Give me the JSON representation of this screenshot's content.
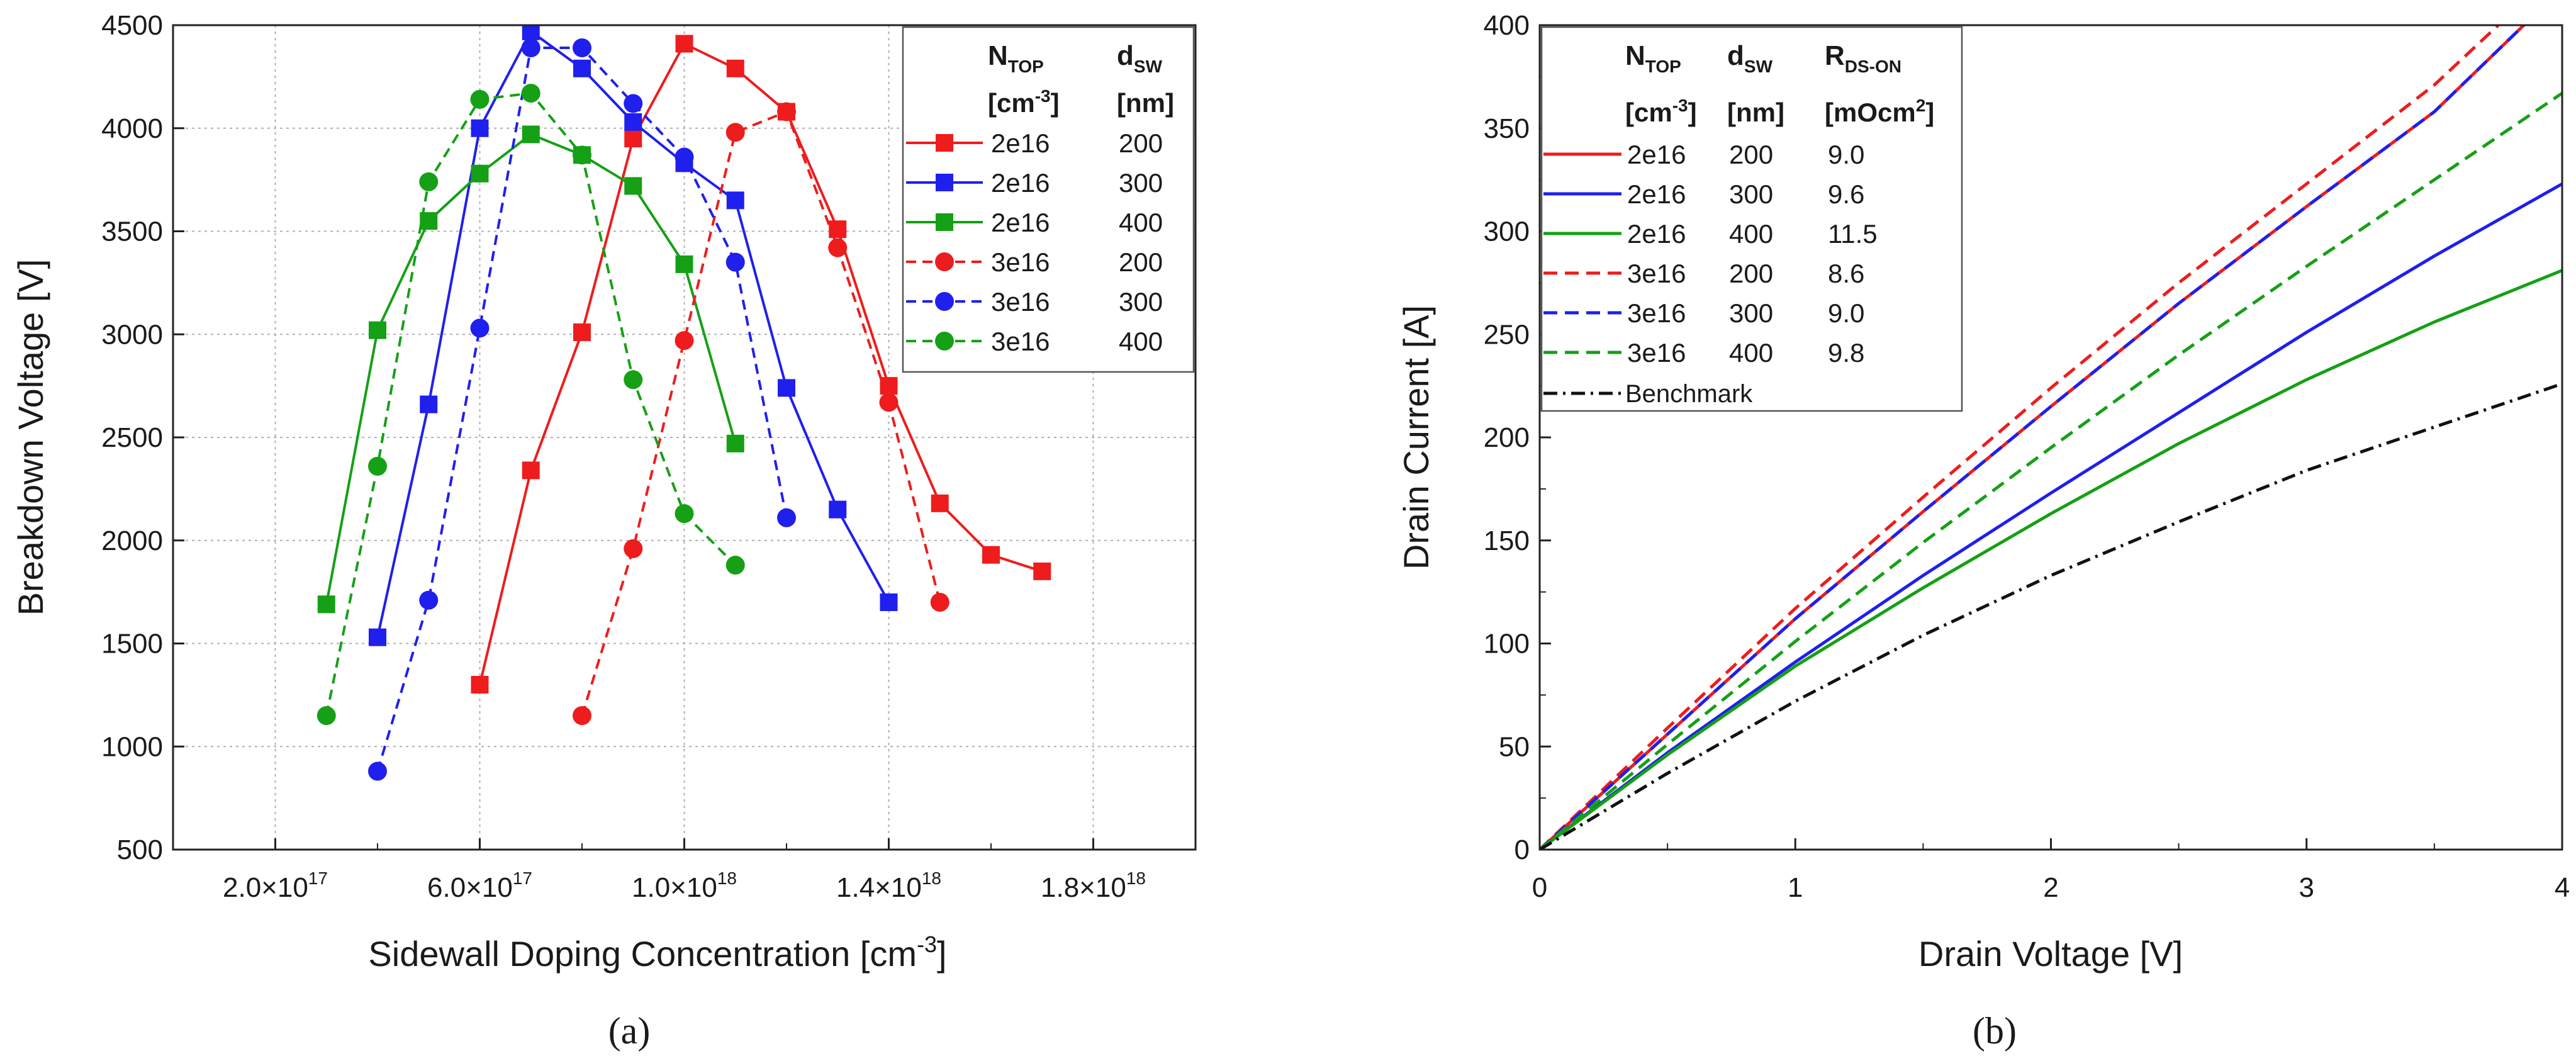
{
  "chart_data": [
    {
      "panel_label": "(a)",
      "type": "line",
      "title": "",
      "xlabel": "Sidewall Doping Concentration [cm",
      "xlabel_sup": "-3",
      "xlabel_end": "]",
      "ylabel": "Breakdown Voltage [V]",
      "xlim": [
        0.0,
        2e+18
      ],
      "ylim": [
        500,
        4500
      ],
      "grid": true,
      "xticks": [
        {
          "value": 2e+17,
          "mant": "2.0×10",
          "exp": "17"
        },
        {
          "value": 6e+17,
          "mant": "6.0×10",
          "exp": "17"
        },
        {
          "value": 1e+18,
          "mant": "1.0×10",
          "exp": "18"
        },
        {
          "value": 1.4e+18,
          "mant": "1.4×10",
          "exp": "18"
        },
        {
          "value": 1.8e+18,
          "mant": "1.8×10",
          "exp": "18"
        }
      ],
      "yticks": [
        "500",
        "1000",
        "1500",
        "2000",
        "2500",
        "3000",
        "3500",
        "4000",
        "4500"
      ],
      "legend": {
        "position": "top-right",
        "col1_title": "N",
        "col1_sub": "TOP",
        "col2_title": "d",
        "col2_sub": "SW",
        "col1_unit": "[cm",
        "col1_unit_sup": "-3",
        "col1_unit_end": "]",
        "col2_unit": "[nm]",
        "entries": [
          {
            "ntop": "2e16",
            "dsw": "200"
          },
          {
            "ntop": "2e16",
            "dsw": "300"
          },
          {
            "ntop": "2e16",
            "dsw": "400"
          },
          {
            "ntop": "3e16",
            "dsw": "200"
          },
          {
            "ntop": "3e16",
            "dsw": "300"
          },
          {
            "ntop": "3e16",
            "dsw": "400"
          }
        ]
      },
      "series": [
        {
          "name": "2e16 200",
          "color": "#ee1c1c",
          "dash": false,
          "marker": "square",
          "x": [
            6e+17,
            7e+17,
            8e+17,
            9e+17,
            1e+18,
            1.1e+18,
            1.2e+18,
            1.3e+18,
            1.4e+18,
            1.5e+18,
            1.6e+18,
            1.7e+18
          ],
          "y": [
            1300,
            2340,
            3010,
            3950,
            4410,
            4290,
            4080,
            3510,
            2750,
            2180,
            1930,
            1850
          ]
        },
        {
          "name": "2e16 300",
          "color": "#1f1fee",
          "dash": false,
          "marker": "square",
          "x": [
            4e+17,
            5e+17,
            6e+17,
            7e+17,
            8e+17,
            9e+17,
            1e+18,
            1.1e+18,
            1.2e+18,
            1.3e+18,
            1.4e+18
          ],
          "y": [
            1530,
            2660,
            4000,
            4470,
            4290,
            4030,
            3830,
            3650,
            2740,
            2150,
            1700
          ]
        },
        {
          "name": "2e16 400",
          "color": "#15a015",
          "dash": false,
          "marker": "square",
          "x": [
            3e+17,
            4e+17,
            5e+17,
            6e+17,
            7e+17,
            8e+17,
            9e+17,
            1e+18,
            1.1e+18
          ],
          "y": [
            1690,
            3020,
            3550,
            3780,
            3970,
            3870,
            3720,
            3340,
            2470
          ]
        },
        {
          "name": "3e16 200",
          "color": "#ee1c1c",
          "dash": true,
          "marker": "circle",
          "x": [
            8e+17,
            9e+17,
            1e+18,
            1.1e+18,
            1.2e+18,
            1.3e+18,
            1.4e+18,
            1.5e+18
          ],
          "y": [
            1150,
            1960,
            2970,
            3980,
            4080,
            3420,
            2670,
            1700
          ]
        },
        {
          "name": "3e16 300",
          "color": "#1f1fee",
          "dash": true,
          "marker": "circle",
          "x": [
            4e+17,
            5e+17,
            6e+17,
            7e+17,
            8e+17,
            9e+17,
            1e+18,
            1.1e+18,
            1.2e+18
          ],
          "y": [
            880,
            1710,
            3030,
            4390,
            4390,
            4120,
            3860,
            3350,
            2110
          ]
        },
        {
          "name": "3e16 400",
          "color": "#15a015",
          "dash": true,
          "marker": "circle",
          "x": [
            3e+17,
            4e+17,
            5e+17,
            6e+17,
            7e+17,
            8e+17,
            9e+17,
            1e+18,
            1.1e+18
          ],
          "y": [
            1150,
            2360,
            3740,
            4140,
            4170,
            3870,
            2780,
            2130,
            1880
          ]
        }
      ]
    },
    {
      "panel_label": "(b)",
      "type": "line",
      "title": "",
      "xlabel": "Drain Voltage [V]",
      "ylabel": "Drain Current [A]",
      "xlim": [
        0,
        4
      ],
      "ylim": [
        0,
        400
      ],
      "grid": false,
      "xticks": [
        "0",
        "1",
        "2",
        "3",
        "4"
      ],
      "yticks": [
        "0",
        "50",
        "100",
        "150",
        "200",
        "250",
        "300",
        "350",
        "400"
      ],
      "legend": {
        "position": "top-left",
        "col1_title": "N",
        "col1_sub": "TOP",
        "col2_title": "d",
        "col2_sub": "SW",
        "col3_title": "R",
        "col3_sub": "DS-ON",
        "col1_unit": "[cm",
        "col1_unit_sup": "-3",
        "col1_unit_end": "]",
        "col2_unit": "[nm]",
        "col3_unit": "[mOcm",
        "col3_unit_sup": "2",
        "col3_unit_end": "]",
        "entries": [
          {
            "ntop": "2e16",
            "dsw": "200",
            "rds": "9.0"
          },
          {
            "ntop": "2e16",
            "dsw": "300",
            "rds": "9.6"
          },
          {
            "ntop": "2e16",
            "dsw": "400",
            "rds": "11.5"
          },
          {
            "ntop": "3e16",
            "dsw": "200",
            "rds": "8.6"
          },
          {
            "ntop": "3e16",
            "dsw": "300",
            "rds": "9.0"
          },
          {
            "ntop": "3e16",
            "dsw": "400",
            "rds": "9.8"
          }
        ],
        "benchmark_label": "Benchmark"
      },
      "series": [
        {
          "name": "2e16 200",
          "color": "#ee1c1c",
          "style": "solid",
          "x": [
            0,
            0.5,
            1,
            1.5,
            2,
            2.5,
            3,
            3.5,
            3.85
          ],
          "y": [
            0,
            56,
            112,
            164,
            215,
            265,
            312,
            358,
            400
          ]
        },
        {
          "name": "2e16 300",
          "color": "#1f1fee",
          "style": "solid",
          "x": [
            0,
            0.5,
            1,
            1.5,
            2,
            2.5,
            3,
            3.5,
            4
          ],
          "y": [
            0,
            47,
            91,
            133,
            173,
            212,
            251,
            288,
            323
          ]
        },
        {
          "name": "2e16 400",
          "color": "#15a015",
          "style": "solid",
          "x": [
            0,
            0.5,
            1,
            1.5,
            2,
            2.5,
            3,
            3.5,
            4
          ],
          "y": [
            0,
            46,
            89,
            127,
            163,
            197,
            228,
            256,
            281
          ]
        },
        {
          "name": "3e16 200",
          "color": "#ee1c1c",
          "style": "dashed",
          "x": [
            0,
            0.5,
            1,
            1.5,
            2,
            2.5,
            3,
            3.5,
            3.75
          ],
          "y": [
            0,
            59,
            117,
            171,
            224,
            275,
            323,
            371,
            400
          ]
        },
        {
          "name": "3e16 300",
          "color": "#1f1fee",
          "style": "dashed",
          "x": [
            0,
            0.5,
            1,
            1.5,
            2,
            2.5,
            3,
            3.5,
            3.85
          ],
          "y": [
            0,
            56,
            112,
            164,
            215,
            265,
            312,
            358,
            400
          ]
        },
        {
          "name": "3e16 400",
          "color": "#15a015",
          "style": "dashed",
          "x": [
            0,
            0.5,
            1,
            1.5,
            2,
            2.5,
            3,
            3.5,
            4
          ],
          "y": [
            0,
            51,
            101,
            149,
            195,
            240,
            283,
            325,
            367
          ]
        },
        {
          "name": "Benchmark",
          "color": "#111111",
          "style": "dashdot",
          "x": [
            0,
            0.5,
            1,
            1.5,
            2,
            2.5,
            3,
            3.5,
            4
          ],
          "y": [
            0,
            37,
            72,
            104,
            133,
            159,
            184,
            205,
            226
          ]
        }
      ]
    }
  ]
}
